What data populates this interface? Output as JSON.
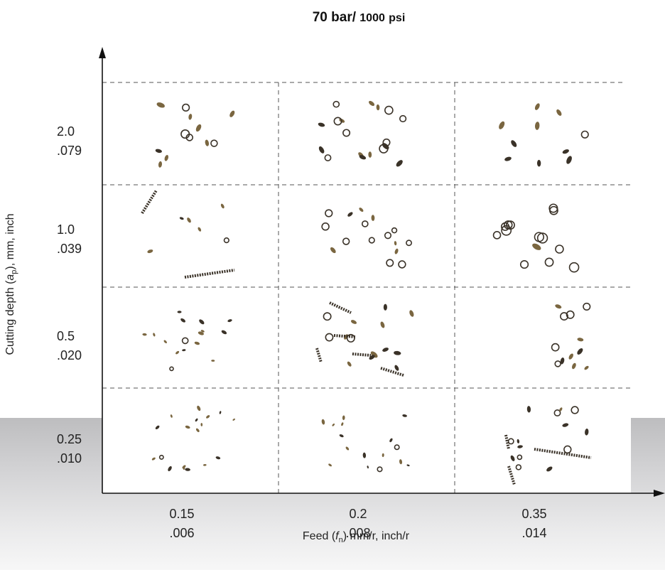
{
  "title": {
    "main": "70 bar/ 1000 psi",
    "value": "70",
    "bar": "bar/",
    "psi_value": "1000",
    "psi_unit": "psi"
  },
  "y_axis": {
    "label_prefix": "Cutting depth (",
    "label_var": "a",
    "label_sub": "p",
    "label_suffix": "), mm, inch",
    "ticks": [
      {
        "mm": "2.0",
        "inch": ".079"
      },
      {
        "mm": "1.0",
        "inch": ".039"
      },
      {
        "mm": "0.5",
        "inch": ".020"
      },
      {
        "mm": "0.25",
        "inch": ".010"
      }
    ]
  },
  "x_axis": {
    "label_prefix": "Feed (",
    "label_var": "f",
    "label_sub": "n",
    "label_suffix": ") mm/r, inch/r",
    "ticks": [
      {
        "mm": "0.15",
        "inch": ".006"
      },
      {
        "mm": "0.2",
        "inch": ".008"
      },
      {
        "mm": "0.35",
        "inch": ".014"
      }
    ]
  },
  "chip_grid": {
    "rows_cutting_depth_mm": [
      "2.0",
      "1.0",
      "0.5",
      "0.25"
    ],
    "cols_feed_mm": [
      "0.15",
      "0.2",
      "0.35"
    ],
    "cells": [
      [
        "small broken chips",
        "small broken chips",
        "small broken chips"
      ],
      [
        "short spiral chips with one long chip",
        "small curled chips",
        "curled chips"
      ],
      [
        "small broken chips",
        "short spiral chips",
        "small broken chips"
      ],
      [
        "small broken chips",
        "small broken chips",
        "small chips with one long chip"
      ]
    ]
  },
  "colors": {
    "chip_dark": "#3a3228",
    "chip_brown": "#7a6640",
    "chip_light": "#a89a82",
    "band": "#c8c8ca"
  }
}
